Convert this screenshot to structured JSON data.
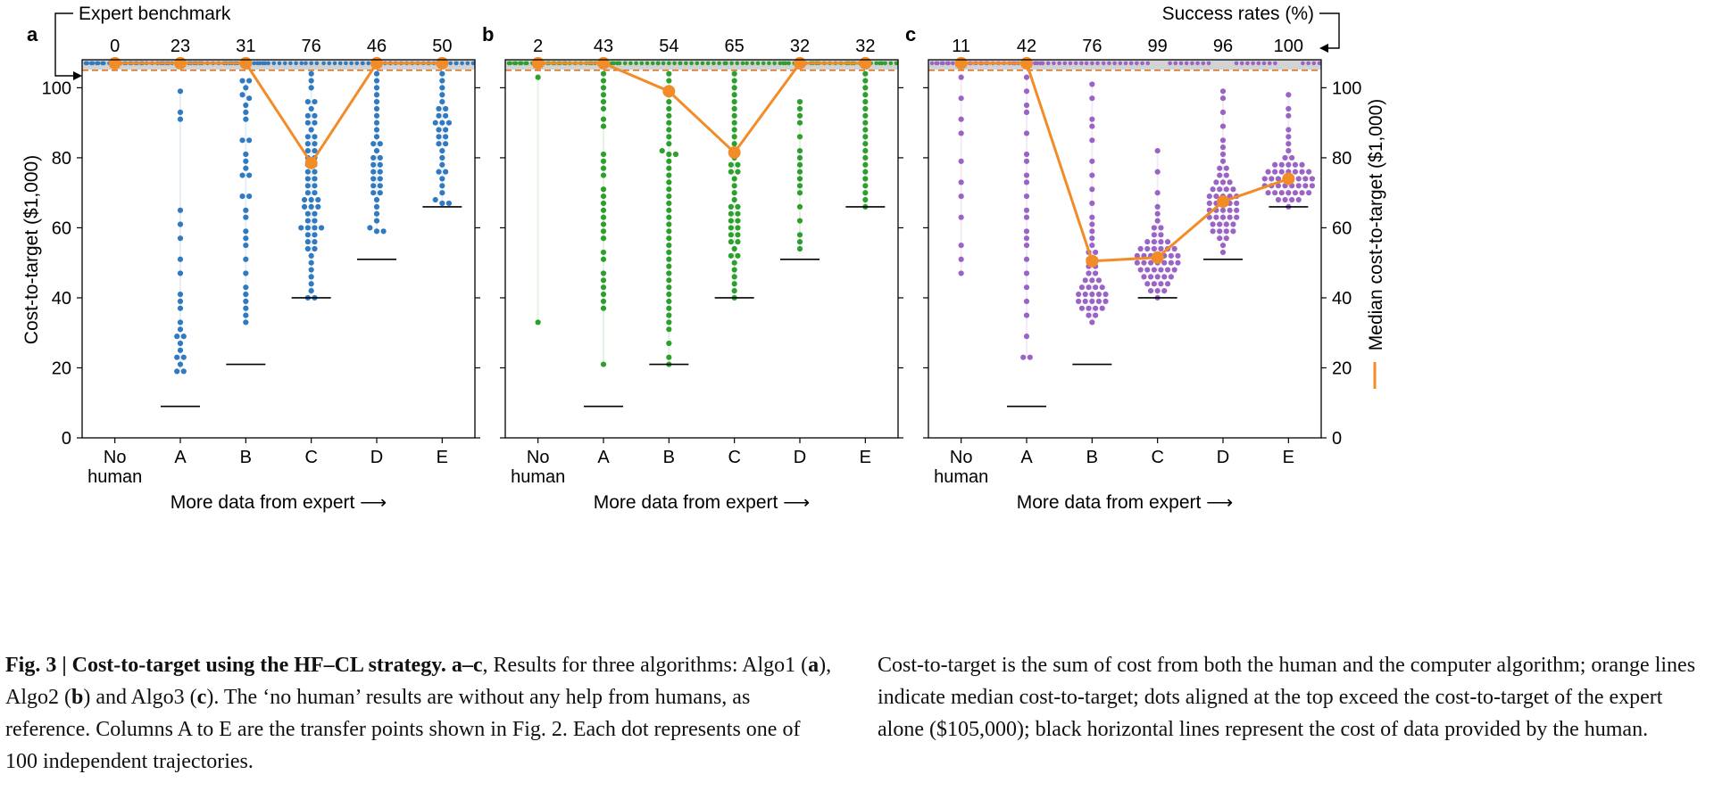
{
  "top_labels": {
    "expert_benchmark": "Expert benchmark",
    "success_rates": "Success rates (%)"
  },
  "axes": {
    "ylabel_left": "Cost-to-target ($1,000)",
    "ylabel_right": "Median cost-to-target ($1,000)",
    "xlabel": "More data from expert ⟶",
    "xticks": [
      "No\nhuman",
      "A",
      "B",
      "C",
      "D",
      "E"
    ],
    "yticks": [
      0,
      20,
      40,
      60,
      80,
      100
    ]
  },
  "chart_data": [
    {
      "type": "scatter",
      "panel": "a",
      "categories": [
        "No human",
        "A",
        "B",
        "C",
        "D",
        "E"
      ],
      "success_rates": [
        0,
        23,
        31,
        76,
        46,
        50
      ],
      "median_cost": [
        107,
        107,
        107,
        78.5,
        107,
        107
      ],
      "human_data_cost": [
        null,
        9,
        21,
        40,
        51,
        66
      ],
      "expert_benchmark": 105,
      "ylim": [
        0,
        108
      ],
      "dot_color": "#2f7ac0",
      "points": [
        [],
        [
          99,
          93,
          91,
          65,
          61,
          57,
          51,
          47,
          41,
          39,
          37,
          33,
          31,
          29,
          29,
          27,
          25,
          23,
          23,
          21,
          19,
          19
        ],
        [
          102,
          102,
          100,
          98,
          97,
          95,
          93,
          91,
          85,
          85,
          81,
          79,
          77,
          75,
          75,
          69,
          69,
          65,
          63,
          59,
          57,
          55,
          51,
          47,
          43,
          41,
          39,
          37,
          35,
          33
        ],
        [
          104,
          102,
          100,
          96,
          96,
          94,
          92,
          92,
          90,
          90,
          88,
          86,
          86,
          84,
          84,
          82,
          82,
          80,
          80,
          78,
          78,
          76,
          76,
          74,
          74,
          72,
          72,
          70,
          70,
          68,
          68,
          68,
          66,
          66,
          66,
          64,
          64,
          62,
          62,
          60,
          60,
          60,
          60,
          58,
          58,
          56,
          56,
          54,
          54,
          52,
          50,
          48,
          46,
          44,
          42,
          40,
          40
        ],
        [
          104,
          102,
          100,
          98,
          96,
          94,
          92,
          90,
          88,
          86,
          84,
          84,
          82,
          80,
          80,
          78,
          78,
          76,
          76,
          74,
          74,
          72,
          72,
          70,
          70,
          68,
          66,
          64,
          62,
          60,
          59,
          59
        ],
        [
          104,
          102,
          100,
          98,
          96,
          94,
          94,
          92,
          92,
          90,
          90,
          90,
          88,
          88,
          86,
          86,
          84,
          84,
          82,
          80,
          78,
          76,
          76,
          74,
          72,
          70,
          68,
          67,
          67
        ]
      ]
    },
    {
      "type": "scatter",
      "panel": "b",
      "categories": [
        "No human",
        "A",
        "B",
        "C",
        "D",
        "E"
      ],
      "success_rates": [
        2,
        43,
        54,
        65,
        32,
        32
      ],
      "median_cost": [
        107,
        107,
        99,
        81.5,
        107,
        107
      ],
      "human_data_cost": [
        null,
        9,
        21,
        40,
        51,
        66
      ],
      "expert_benchmark": 105,
      "ylim": [
        0,
        108
      ],
      "dot_color": "#2ca02c",
      "points": [
        [
          103,
          33
        ],
        [
          104,
          102,
          100,
          98,
          96,
          94,
          91,
          89,
          81,
          79,
          77,
          75,
          71,
          69,
          67,
          65,
          63,
          61,
          59,
          57,
          53,
          51,
          47,
          45,
          43,
          41,
          39,
          37,
          21
        ],
        [
          104,
          102,
          100,
          98,
          96,
          94,
          92,
          90,
          88,
          86,
          84,
          82,
          81,
          81,
          79,
          77,
          75,
          73,
          71,
          69,
          67,
          65,
          63,
          61,
          59,
          57,
          55,
          53,
          51,
          49,
          47,
          45,
          43,
          41,
          39,
          37,
          35,
          33,
          31,
          27,
          23,
          21
        ],
        [
          104,
          102,
          100,
          98,
          96,
          94,
          92,
          90,
          88,
          86,
          84,
          82,
          80,
          78,
          78,
          76,
          76,
          74,
          72,
          70,
          68,
          66,
          66,
          64,
          64,
          62,
          62,
          60,
          60,
          58,
          58,
          56,
          56,
          54,
          52,
          52,
          50,
          48,
          46,
          44,
          42,
          40
        ],
        [
          96,
          94,
          92,
          90,
          86,
          82,
          80,
          78,
          76,
          74,
          72,
          70,
          66,
          62,
          58,
          56,
          54
        ],
        [
          104,
          102,
          100,
          98,
          96,
          94,
          92,
          90,
          88,
          86,
          84,
          82,
          80,
          78,
          76,
          74,
          72,
          70,
          68,
          66
        ]
      ]
    },
    {
      "type": "scatter",
      "panel": "c",
      "categories": [
        "No human",
        "A",
        "B",
        "C",
        "D",
        "E"
      ],
      "success_rates": [
        11,
        42,
        76,
        99,
        96,
        100
      ],
      "median_cost": [
        107,
        107,
        50.5,
        51.5,
        67.5,
        74
      ],
      "human_data_cost": [
        null,
        9,
        21,
        40,
        51,
        66
      ],
      "expert_benchmark": 105,
      "ylim": [
        0,
        108
      ],
      "dot_color": "#9a63c6",
      "points": [
        [
          103,
          97,
          91,
          87,
          79,
          73,
          69,
          63,
          55,
          51,
          47
        ],
        [
          103,
          99,
          95,
          93,
          87,
          81,
          79,
          75,
          73,
          69,
          65,
          63,
          59,
          57,
          55,
          51,
          47,
          43,
          39,
          35,
          29,
          23,
          23
        ],
        [
          101,
          97,
          91,
          89,
          85,
          79,
          75,
          71,
          67,
          63,
          61,
          59,
          57,
          55,
          53,
          53,
          51,
          51,
          49,
          49,
          47,
          47,
          45,
          45,
          45,
          43,
          43,
          43,
          43,
          41,
          41,
          41,
          41,
          41,
          39,
          39,
          39,
          39,
          39,
          37,
          37,
          37,
          37,
          35,
          35,
          33
        ],
        [
          82,
          76,
          70,
          66,
          64,
          62,
          60,
          60,
          58,
          58,
          56,
          56,
          56,
          56,
          54,
          54,
          54,
          54,
          54,
          54,
          52,
          52,
          52,
          52,
          52,
          52,
          52,
          50,
          50,
          50,
          50,
          50,
          50,
          50,
          48,
          48,
          48,
          48,
          48,
          48,
          46,
          46,
          46,
          46,
          46,
          44,
          44,
          44,
          44,
          42,
          42,
          42,
          40
        ],
        [
          99,
          97,
          93,
          89,
          85,
          83,
          81,
          79,
          77,
          77,
          75,
          75,
          73,
          73,
          73,
          71,
          71,
          71,
          71,
          69,
          69,
          69,
          69,
          69,
          67,
          67,
          67,
          67,
          67,
          65,
          65,
          65,
          65,
          65,
          63,
          63,
          63,
          63,
          63,
          61,
          61,
          61,
          61,
          59,
          59,
          59,
          59,
          57,
          57,
          55,
          53
        ],
        [
          98,
          94,
          92,
          88,
          86,
          84,
          82,
          80,
          80,
          78,
          78,
          78,
          78,
          78,
          76,
          76,
          76,
          76,
          76,
          76,
          76,
          74,
          74,
          74,
          74,
          74,
          74,
          74,
          74,
          72,
          72,
          72,
          72,
          72,
          72,
          72,
          72,
          70,
          70,
          70,
          70,
          70,
          70,
          70,
          68,
          68,
          68,
          68,
          66
        ]
      ]
    }
  ],
  "caption": {
    "fig_label": "Fig. 3 | Cost-to-target using the HF–CL strategy.",
    "range": "a–c",
    "left_pre": ", Results for three algorithms: Algo1 (",
    "a": "a",
    "l1": "), Algo2 (",
    "b": "b",
    "l2": ") and Algo3 (",
    "c": "c",
    "left_post": "). The ‘no human’ results are without any help from humans, as reference. Columns A to E are the transfer points shown in Fig. 2. Each dot represents one of 100 independent trajectories.",
    "right": "Cost-to-target is the sum of cost from both the human and the computer algorithm; orange lines indicate median cost-to-target; dots aligned at the top exceed the cost-to-target of the expert alone ($105,000); black horizontal lines represent the cost of data provided by the human."
  },
  "colors": {
    "median_line": "#f28c28",
    "benchmark_dash": "#d9772b",
    "band": "#d3d3d3"
  }
}
